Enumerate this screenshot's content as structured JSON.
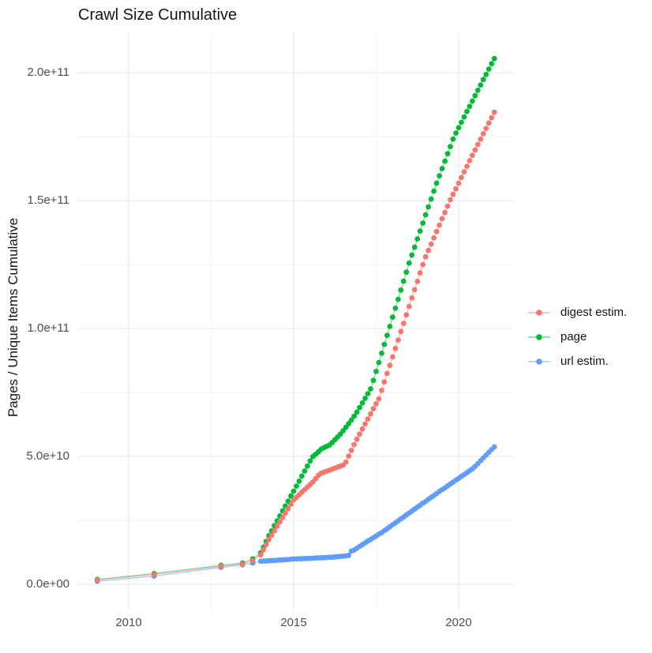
{
  "title": "Crawl Size Cumulative",
  "y_axis": {
    "label": "Pages / Unique Items Cumulative",
    "ticks": [
      {
        "label": "0.0e+00",
        "value_e9": 0
      },
      {
        "label": "5.0e+10",
        "value_e9": 50
      },
      {
        "label": "1.0e+11",
        "value_e9": 100
      },
      {
        "label": "1.5e+11",
        "value_e9": 150
      },
      {
        "label": "2.0e+11",
        "value_e9": 200
      }
    ]
  },
  "x_axis": {
    "ticks": [
      {
        "label": "2010",
        "value": 2010
      },
      {
        "label": "2015",
        "value": 2015
      },
      {
        "label": "2020",
        "value": 2020
      }
    ]
  },
  "legend": {
    "items": [
      {
        "label": "digest estim.",
        "color": "#F8766D"
      },
      {
        "label": "page",
        "color": "#00BA38"
      },
      {
        "label": "url estim.",
        "color": "#619CFF"
      }
    ]
  },
  "chart_data": {
    "type": "line",
    "title": "Crawl Size Cumulative",
    "xlabel": "",
    "ylabel": "Pages / Unique Items Cumulative",
    "x_unit": "year (decimal)",
    "y_unit": "count, in units of 1e9 (billions)",
    "xlim": [
      2008.45,
      2021.7
    ],
    "ylim_e9": [
      -10.2,
      215.7
    ],
    "legend_position": "right",
    "grid": {
      "major_x": [
        2010,
        2015,
        2020
      ],
      "minor_x": [
        2012.5,
        2017.5
      ],
      "major_y_e9": [
        0,
        50,
        100,
        150,
        200
      ],
      "minor_y_e9": [
        25,
        75,
        125,
        175
      ]
    },
    "series": [
      {
        "name": "digest estim.",
        "color": "#F8766D",
        "points": [
          [
            2009.05,
            1.7
          ],
          [
            2010.77,
            3.8
          ],
          [
            2012.8,
            7.0
          ],
          [
            2013.45,
            7.9
          ],
          [
            2013.76,
            9.3
          ],
          [
            2014.0,
            11.5
          ],
          [
            2014.083,
            13.5
          ],
          [
            2014.167,
            15.5
          ],
          [
            2014.25,
            17.5
          ],
          [
            2014.333,
            19.2
          ],
          [
            2014.417,
            20.9
          ],
          [
            2014.5,
            22.7
          ],
          [
            2014.583,
            24.4
          ],
          [
            2014.667,
            26.1
          ],
          [
            2014.75,
            27.8
          ],
          [
            2014.833,
            29.5
          ],
          [
            2014.917,
            31.3
          ],
          [
            2015.0,
            33.0
          ],
          [
            2015.083,
            34.0
          ],
          [
            2015.167,
            35.0
          ],
          [
            2015.25,
            36.0
          ],
          [
            2015.333,
            37.0
          ],
          [
            2015.417,
            38.0
          ],
          [
            2015.5,
            39.0
          ],
          [
            2015.583,
            40.0
          ],
          [
            2015.667,
            41.3
          ],
          [
            2015.75,
            42.6
          ],
          [
            2015.833,
            43.4
          ],
          [
            2015.917,
            43.8
          ],
          [
            2016.0,
            44.2
          ],
          [
            2016.083,
            44.6
          ],
          [
            2016.167,
            45.0
          ],
          [
            2016.25,
            45.4
          ],
          [
            2016.333,
            45.8
          ],
          [
            2016.417,
            46.2
          ],
          [
            2016.5,
            46.6
          ],
          [
            2016.583,
            47.8
          ],
          [
            2016.667,
            50.1
          ],
          [
            2016.75,
            52.3
          ],
          [
            2016.833,
            54.6
          ],
          [
            2016.917,
            56.7
          ],
          [
            2017.0,
            58.7
          ],
          [
            2017.083,
            60.7
          ],
          [
            2017.167,
            62.7
          ],
          [
            2017.25,
            64.6
          ],
          [
            2017.333,
            66.6
          ],
          [
            2017.417,
            68.6
          ],
          [
            2017.5,
            70.6
          ],
          [
            2017.583,
            72.5
          ],
          [
            2017.667,
            75.8
          ],
          [
            2017.75,
            79.1
          ],
          [
            2017.833,
            82.4
          ],
          [
            2017.917,
            85.6
          ],
          [
            2018.0,
            88.9
          ],
          [
            2018.083,
            92.2
          ],
          [
            2018.167,
            95.5
          ],
          [
            2018.25,
            98.8
          ],
          [
            2018.333,
            102.0
          ],
          [
            2018.417,
            105.3
          ],
          [
            2018.5,
            108.6
          ],
          [
            2018.583,
            111.9
          ],
          [
            2018.667,
            115.2
          ],
          [
            2018.75,
            118.4
          ],
          [
            2018.833,
            121.7
          ],
          [
            2018.917,
            125.0
          ],
          [
            2019.0,
            128.0
          ],
          [
            2019.083,
            130.5
          ],
          [
            2019.167,
            133.0
          ],
          [
            2019.25,
            135.4
          ],
          [
            2019.333,
            137.9
          ],
          [
            2019.417,
            140.4
          ],
          [
            2019.5,
            142.9
          ],
          [
            2019.583,
            145.3
          ],
          [
            2019.667,
            147.8
          ],
          [
            2019.75,
            150.3
          ],
          [
            2019.833,
            152.4
          ],
          [
            2019.917,
            154.6
          ],
          [
            2020.0,
            156.8
          ],
          [
            2020.083,
            159.0
          ],
          [
            2020.167,
            161.2
          ],
          [
            2020.25,
            163.4
          ],
          [
            2020.333,
            165.6
          ],
          [
            2020.417,
            167.7
          ],
          [
            2020.5,
            169.8
          ],
          [
            2020.583,
            171.9
          ],
          [
            2020.667,
            174.0
          ],
          [
            2020.75,
            176.1
          ],
          [
            2020.833,
            178.2
          ],
          [
            2020.917,
            180.3
          ],
          [
            2021.0,
            182.4
          ],
          [
            2021.083,
            184.5
          ]
        ]
      },
      {
        "name": "page",
        "color": "#00BA38",
        "points": [
          [
            2009.05,
            1.9
          ],
          [
            2010.77,
            4.2
          ],
          [
            2012.8,
            7.4
          ],
          [
            2013.45,
            8.3
          ],
          [
            2013.76,
            9.9
          ],
          [
            2014.0,
            12.3
          ],
          [
            2014.083,
            14.5
          ],
          [
            2014.167,
            16.8
          ],
          [
            2014.25,
            19.0
          ],
          [
            2014.333,
            20.9
          ],
          [
            2014.417,
            22.9
          ],
          [
            2014.5,
            24.8
          ],
          [
            2014.583,
            26.7
          ],
          [
            2014.667,
            28.7
          ],
          [
            2014.75,
            30.6
          ],
          [
            2014.833,
            32.5
          ],
          [
            2014.917,
            34.5
          ],
          [
            2015.0,
            36.4
          ],
          [
            2015.083,
            38.4
          ],
          [
            2015.167,
            40.3
          ],
          [
            2015.25,
            42.3
          ],
          [
            2015.333,
            44.3
          ],
          [
            2015.417,
            46.2
          ],
          [
            2015.5,
            48.2
          ],
          [
            2015.583,
            49.9
          ],
          [
            2015.667,
            50.8
          ],
          [
            2015.75,
            51.8
          ],
          [
            2015.833,
            52.8
          ],
          [
            2015.917,
            53.4
          ],
          [
            2016.0,
            53.9
          ],
          [
            2016.083,
            54.4
          ],
          [
            2016.167,
            55.4
          ],
          [
            2016.25,
            56.5
          ],
          [
            2016.333,
            57.6
          ],
          [
            2016.417,
            58.7
          ],
          [
            2016.5,
            60.0
          ],
          [
            2016.583,
            61.4
          ],
          [
            2016.667,
            62.8
          ],
          [
            2016.75,
            64.2
          ],
          [
            2016.833,
            65.7
          ],
          [
            2016.917,
            67.3
          ],
          [
            2017.0,
            69.1
          ],
          [
            2017.083,
            70.9
          ],
          [
            2017.167,
            72.7
          ],
          [
            2017.25,
            74.5
          ],
          [
            2017.333,
            76.4
          ],
          [
            2017.417,
            79.7
          ],
          [
            2017.5,
            83.2
          ],
          [
            2017.583,
            86.7
          ],
          [
            2017.667,
            90.3
          ],
          [
            2017.75,
            93.8
          ],
          [
            2017.833,
            97.3
          ],
          [
            2017.917,
            100.8
          ],
          [
            2018.0,
            104.4
          ],
          [
            2018.083,
            107.9
          ],
          [
            2018.167,
            111.4
          ],
          [
            2018.25,
            115.0
          ],
          [
            2018.333,
            118.5
          ],
          [
            2018.417,
            122.0
          ],
          [
            2018.5,
            125.6
          ],
          [
            2018.583,
            128.7
          ],
          [
            2018.667,
            131.8
          ],
          [
            2018.75,
            135.0
          ],
          [
            2018.833,
            138.1
          ],
          [
            2018.917,
            141.2
          ],
          [
            2019.0,
            144.4
          ],
          [
            2019.083,
            147.5
          ],
          [
            2019.167,
            150.6
          ],
          [
            2019.25,
            153.7
          ],
          [
            2019.333,
            156.8
          ],
          [
            2019.417,
            159.7
          ],
          [
            2019.5,
            162.5
          ],
          [
            2019.583,
            165.4
          ],
          [
            2019.667,
            168.3
          ],
          [
            2019.75,
            171.1
          ],
          [
            2019.833,
            174.0
          ],
          [
            2019.917,
            176.4
          ],
          [
            2020.0,
            178.5
          ],
          [
            2020.083,
            180.6
          ],
          [
            2020.167,
            182.7
          ],
          [
            2020.25,
            184.8
          ],
          [
            2020.333,
            186.8
          ],
          [
            2020.417,
            188.9
          ],
          [
            2020.5,
            191.0
          ],
          [
            2020.583,
            193.1
          ],
          [
            2020.667,
            195.2
          ],
          [
            2020.75,
            197.3
          ],
          [
            2020.833,
            199.3
          ],
          [
            2020.917,
            201.4
          ],
          [
            2021.0,
            203.5
          ],
          [
            2021.083,
            205.5
          ]
        ]
      },
      {
        "name": "url estim.",
        "color": "#619CFF",
        "points": [
          [
            2009.05,
            1.2
          ],
          [
            2010.77,
            3.2
          ],
          [
            2012.8,
            6.6
          ],
          [
            2013.45,
            7.6
          ],
          [
            2013.76,
            8.3
          ],
          [
            2014.0,
            9.0
          ],
          [
            2014.083,
            9.1
          ],
          [
            2014.167,
            9.1
          ],
          [
            2014.25,
            9.2
          ],
          [
            2014.333,
            9.3
          ],
          [
            2014.417,
            9.3
          ],
          [
            2014.5,
            9.4
          ],
          [
            2014.583,
            9.5
          ],
          [
            2014.667,
            9.5
          ],
          [
            2014.75,
            9.6
          ],
          [
            2014.833,
            9.7
          ],
          [
            2014.917,
            9.8
          ],
          [
            2015.0,
            9.9
          ],
          [
            2015.083,
            9.9
          ],
          [
            2015.167,
            10.0
          ],
          [
            2015.25,
            10.0
          ],
          [
            2015.333,
            10.1
          ],
          [
            2015.417,
            10.1
          ],
          [
            2015.5,
            10.2
          ],
          [
            2015.583,
            10.2
          ],
          [
            2015.667,
            10.3
          ],
          [
            2015.75,
            10.3
          ],
          [
            2015.833,
            10.4
          ],
          [
            2015.917,
            10.4
          ],
          [
            2016.0,
            10.5
          ],
          [
            2016.083,
            10.6
          ],
          [
            2016.167,
            10.6
          ],
          [
            2016.25,
            10.7
          ],
          [
            2016.333,
            10.8
          ],
          [
            2016.417,
            10.9
          ],
          [
            2016.5,
            11.0
          ],
          [
            2016.583,
            11.1
          ],
          [
            2016.667,
            11.3
          ],
          [
            2016.75,
            13.0
          ],
          [
            2016.833,
            13.4
          ],
          [
            2016.917,
            14.1
          ],
          [
            2017.0,
            14.8
          ],
          [
            2017.083,
            15.5
          ],
          [
            2017.167,
            16.2
          ],
          [
            2017.25,
            16.9
          ],
          [
            2017.333,
            17.5
          ],
          [
            2017.417,
            18.2
          ],
          [
            2017.5,
            18.9
          ],
          [
            2017.583,
            19.6
          ],
          [
            2017.667,
            20.2
          ],
          [
            2017.75,
            21.0
          ],
          [
            2017.833,
            21.7
          ],
          [
            2017.917,
            22.5
          ],
          [
            2018.0,
            23.3
          ],
          [
            2018.083,
            24.0
          ],
          [
            2018.167,
            24.8
          ],
          [
            2018.25,
            25.6
          ],
          [
            2018.333,
            26.3
          ],
          [
            2018.417,
            27.1
          ],
          [
            2018.5,
            27.9
          ],
          [
            2018.583,
            28.6
          ],
          [
            2018.667,
            29.4
          ],
          [
            2018.75,
            30.2
          ],
          [
            2018.833,
            30.9
          ],
          [
            2018.917,
            31.7
          ],
          [
            2019.0,
            32.4
          ],
          [
            2019.083,
            33.2
          ],
          [
            2019.167,
            34.0
          ],
          [
            2019.25,
            34.7
          ],
          [
            2019.333,
            35.5
          ],
          [
            2019.417,
            36.3
          ],
          [
            2019.5,
            37.0
          ],
          [
            2019.583,
            37.7
          ],
          [
            2019.667,
            38.5
          ],
          [
            2019.75,
            39.2
          ],
          [
            2019.833,
            39.9
          ],
          [
            2019.917,
            40.7
          ],
          [
            2020.0,
            41.4
          ],
          [
            2020.083,
            42.2
          ],
          [
            2020.167,
            42.9
          ],
          [
            2020.25,
            43.6
          ],
          [
            2020.333,
            44.4
          ],
          [
            2020.417,
            45.1
          ],
          [
            2020.5,
            46.1
          ],
          [
            2020.583,
            47.2
          ],
          [
            2020.667,
            48.3
          ],
          [
            2020.75,
            49.4
          ],
          [
            2020.833,
            50.5
          ],
          [
            2020.917,
            51.6
          ],
          [
            2021.0,
            52.7
          ],
          [
            2021.083,
            53.7
          ]
        ]
      }
    ]
  }
}
